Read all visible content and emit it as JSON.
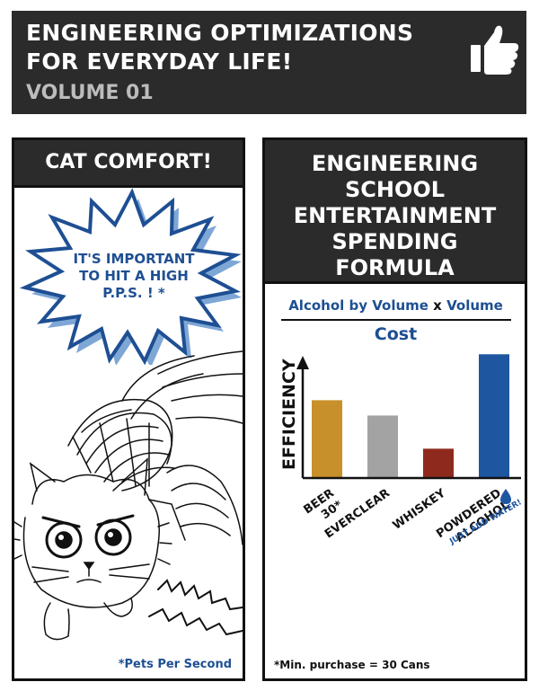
{
  "header": {
    "title_line1": "ENGINEERING OPTIMIZATIONS",
    "title_line2": "FOR EVERYDAY LIFE!",
    "volume": "VOLUME 01",
    "icon": "thumbs-up-icon"
  },
  "left_panel": {
    "title": "CAT COMFORT!",
    "burst_line1": "IT'S IMPORTANT",
    "burst_line2": "TO HIT A HIGH",
    "burst_line3": "P.P.S. ! *",
    "footnote": "*Pets Per Second"
  },
  "right_panel": {
    "title_lines": [
      "ENGINEERING",
      "SCHOOL",
      "ENTERTAINMENT",
      "SPENDING",
      "FORMULA"
    ],
    "formula_part1": "Alcohol by Volume",
    "formula_times": "x",
    "formula_part2": "Volume",
    "formula_denominator": "Cost",
    "footnote": "*Min. purchase = 30 Cans"
  },
  "chart_data": {
    "type": "bar",
    "title": "",
    "ylabel": "EFFICIENCY",
    "xlabel": "",
    "categories": [
      "BEER 30*",
      "EVERCLEAR",
      "WHISKEY",
      "POWDERED ALCOHOL"
    ],
    "values": [
      61,
      49,
      23,
      97
    ],
    "ylim": [
      0,
      100
    ],
    "colors": [
      "#c8902a",
      "#a3a3a3",
      "#8e2a1d",
      "#1e56a0"
    ],
    "annotation": "JUST ADD WATER!",
    "annotation_icon": "water-drop-icon",
    "grid": false
  }
}
